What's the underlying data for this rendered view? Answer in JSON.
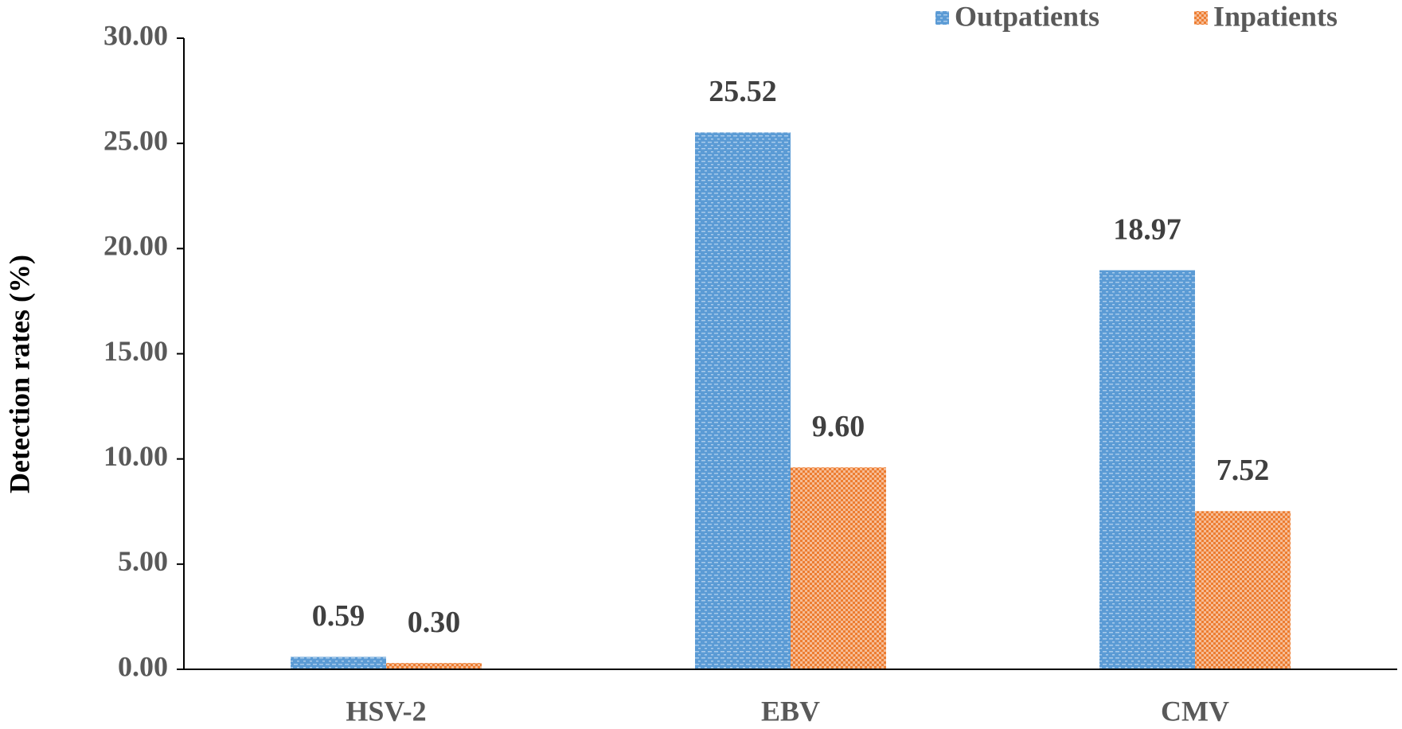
{
  "chart_data": {
    "type": "bar",
    "y_label": "Detection rates (%)",
    "categories": [
      "HSV-2",
      "EBV",
      "CMV"
    ],
    "series": [
      {
        "name": "Outpatients",
        "color": "#5b9bd5",
        "values": [
          0.59,
          25.52,
          18.97
        ],
        "value_labels": [
          "0.59",
          "25.52",
          "18.97"
        ]
      },
      {
        "name": "Inpatients",
        "color": "#ed7d31",
        "values": [
          0.3,
          9.6,
          7.52
        ],
        "value_labels": [
          "0.30",
          "9.60",
          "7.52"
        ]
      }
    ],
    "ylim": [
      0,
      30
    ],
    "yticks": [
      {
        "value": 0,
        "label": "0.00"
      },
      {
        "value": 5,
        "label": "5.00"
      },
      {
        "value": 10,
        "label": "10.00"
      },
      {
        "value": 15,
        "label": "15.00"
      },
      {
        "value": 20,
        "label": "20.00"
      },
      {
        "value": 25,
        "label": "25.00"
      },
      {
        "value": 30,
        "label": "30.00"
      }
    ],
    "legend": "top-right",
    "grid": false
  }
}
